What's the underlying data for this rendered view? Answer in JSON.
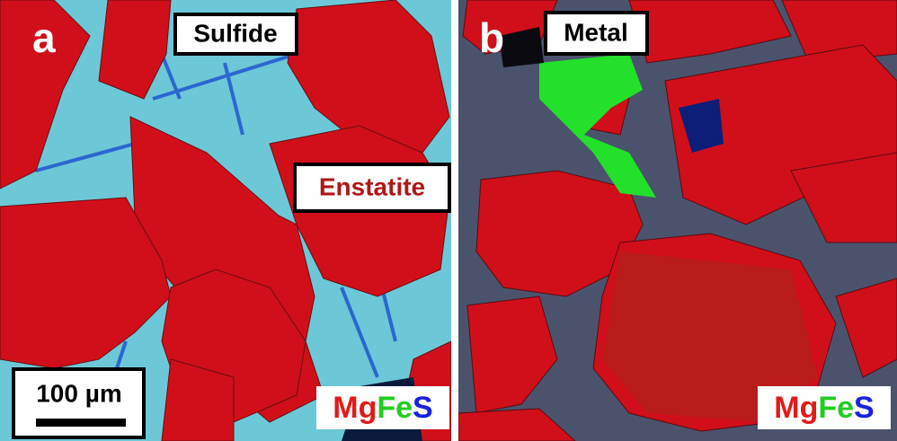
{
  "panels": [
    {
      "label": "a",
      "annotations": [
        "Sulfide",
        "Enstatite"
      ],
      "scale_bar": "100 µm",
      "legend": [
        "Mg",
        "Fe",
        "S"
      ]
    },
    {
      "label": "b",
      "annotations": [
        "Metal"
      ],
      "legend": [
        "Mg",
        "Fe",
        "S"
      ]
    }
  ]
}
